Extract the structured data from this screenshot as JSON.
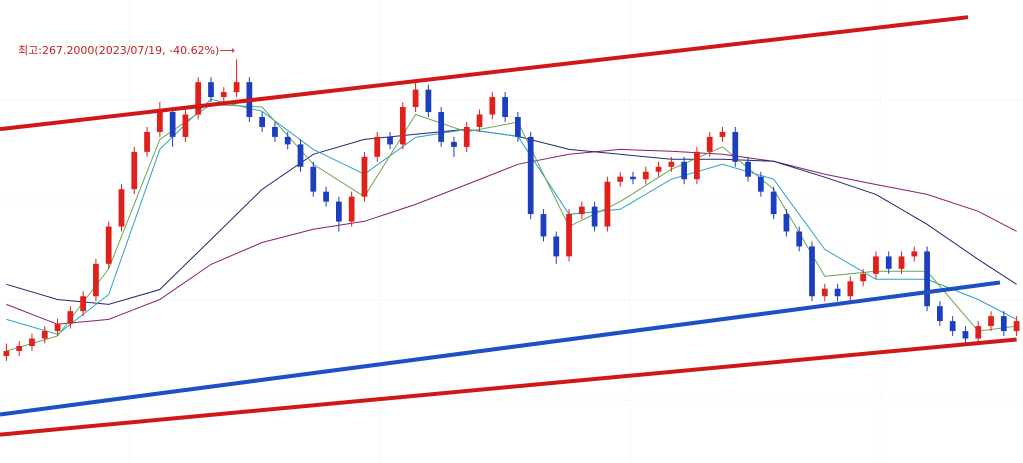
{
  "chart_data": {
    "type": "candlestick",
    "annotation": "최고:267.2000(2023/07/19, -40.62%)⟶",
    "xlim": [
      -0.5,
      79.5
    ],
    "ylim": [
      105,
      291
    ],
    "up_color": "#e0201b",
    "down_color": "#1d3fbf",
    "ohlc": [
      [
        148,
        153,
        146,
        150
      ],
      [
        150,
        154,
        148,
        152
      ],
      [
        152,
        157,
        150,
        155
      ],
      [
        155,
        160,
        153,
        158
      ],
      [
        158,
        163,
        156,
        161
      ],
      [
        161,
        168,
        159,
        166
      ],
      [
        166,
        174,
        164,
        172
      ],
      [
        172,
        187,
        170,
        185
      ],
      [
        185,
        202,
        183,
        200
      ],
      [
        200,
        217,
        198,
        215
      ],
      [
        215,
        232,
        213,
        230
      ],
      [
        230,
        240,
        228,
        238
      ],
      [
        238,
        250,
        236,
        246
      ],
      [
        246,
        248,
        232,
        236
      ],
      [
        236,
        247,
        234,
        245
      ],
      [
        245,
        260,
        243,
        258
      ],
      [
        258,
        260,
        250,
        252
      ],
      [
        252,
        256,
        250,
        254
      ],
      [
        254,
        267.2,
        252,
        258
      ],
      [
        258,
        260,
        242,
        244
      ],
      [
        244,
        246,
        238,
        240
      ],
      [
        240,
        242,
        234,
        236
      ],
      [
        236,
        238,
        231,
        233
      ],
      [
        233,
        235,
        222,
        224
      ],
      [
        224,
        226,
        212,
        214
      ],
      [
        214,
        216,
        208,
        210
      ],
      [
        210,
        212,
        198,
        202
      ],
      [
        202,
        214,
        200,
        212
      ],
      [
        212,
        230,
        210,
        228
      ],
      [
        228,
        238,
        226,
        236
      ],
      [
        236,
        238,
        231,
        233
      ],
      [
        233,
        250,
        231,
        248
      ],
      [
        248,
        258,
        246,
        255
      ],
      [
        255,
        257,
        244,
        246
      ],
      [
        246,
        248,
        232,
        234
      ],
      [
        234,
        236,
        228,
        232
      ],
      [
        232,
        242,
        230,
        240
      ],
      [
        240,
        247,
        238,
        245
      ],
      [
        245,
        254,
        243,
        252
      ],
      [
        252,
        254,
        242,
        244
      ],
      [
        244,
        246,
        234,
        236
      ],
      [
        236,
        238,
        203,
        205
      ],
      [
        205,
        207,
        194,
        196
      ],
      [
        196,
        198,
        185,
        188
      ],
      [
        188,
        207,
        186,
        205
      ],
      [
        205,
        210,
        203,
        208
      ],
      [
        208,
        210,
        198,
        200
      ],
      [
        200,
        220,
        198,
        218
      ],
      [
        218,
        222,
        216,
        220
      ],
      [
        220,
        222,
        217,
        219
      ],
      [
        219,
        224,
        217,
        222
      ],
      [
        222,
        226,
        220,
        224
      ],
      [
        224,
        228,
        222,
        226
      ],
      [
        226,
        228,
        217,
        219
      ],
      [
        219,
        232,
        217,
        230
      ],
      [
        230,
        238,
        228,
        236
      ],
      [
        236,
        240,
        234,
        238
      ],
      [
        238,
        240,
        224,
        226
      ],
      [
        226,
        228,
        218,
        220
      ],
      [
        220,
        222,
        212,
        214
      ],
      [
        214,
        216,
        203,
        205
      ],
      [
        205,
        207,
        196,
        198
      ],
      [
        198,
        200,
        190,
        192
      ],
      [
        192,
        194,
        170,
        172
      ],
      [
        172,
        177,
        170,
        175
      ],
      [
        175,
        177,
        170,
        172
      ],
      [
        172,
        180,
        170,
        178
      ],
      [
        178,
        183,
        176,
        181
      ],
      [
        181,
        190,
        179,
        188
      ],
      [
        188,
        190,
        181,
        183
      ],
      [
        183,
        190,
        181,
        188
      ],
      [
        188,
        192,
        186,
        190
      ],
      [
        190,
        192,
        166,
        168
      ],
      [
        168,
        170,
        160,
        162
      ],
      [
        162,
        164,
        156,
        158
      ],
      [
        158,
        160,
        153,
        155
      ],
      [
        155,
        162,
        153,
        160
      ],
      [
        160,
        166,
        158,
        164
      ],
      [
        164,
        166,
        156,
        158
      ],
      [
        158,
        164,
        156,
        162
      ]
    ],
    "ma_x": [
      0,
      4,
      8,
      12,
      16,
      20,
      24,
      28,
      32,
      36,
      40,
      44,
      48,
      52,
      56,
      60,
      64,
      68,
      72,
      76,
      79
    ],
    "series": [
      {
        "color": "#8a1f6e",
        "values": [
          168.7,
          160.7,
          162.7,
          170.7,
          184.8,
          193.6,
          198.9,
          202.1,
          208.9,
          216.9,
          225,
          229,
          231,
          230.2,
          229,
          226.2,
          221,
          216.9,
          212.9,
          206.1,
          198.1
        ]
      },
      {
        "color": "#1c2a78",
        "values": [
          176.8,
          170.7,
          168.7,
          174.7,
          194.8,
          214.9,
          229,
          235,
          237.1,
          239.1,
          236.2,
          231,
          229,
          227,
          227,
          226.2,
          219.8,
          212.9,
          200.9,
          186.8,
          176.8
        ]
      },
      {
        "color": "#2aa3c9",
        "values": [
          162.7,
          156.7,
          172.7,
          231,
          251.1,
          246.3,
          231,
          221,
          235.8,
          239.1,
          236.2,
          204.9,
          206.9,
          219,
          225,
          219,
          190.8,
          178.8,
          178.8,
          170.7,
          162.7
        ]
      },
      {
        "color": "#6aa84f",
        "values": [
          150,
          156,
          183,
          235,
          249,
          248,
          225,
          212,
          245,
          238,
          242,
          200,
          210,
          223,
          232,
          215,
          180,
          182,
          182,
          158,
          160
        ]
      }
    ],
    "trendlines": [
      {
        "color": "#d01818",
        "x": [
          -0.5,
          75.2
        ],
        "values": [
          239.1,
          284.1
        ]
      },
      {
        "color": "#1f4fc6",
        "x": [
          -0.5,
          77.7
        ],
        "values": [
          124.5,
          177.5
        ]
      },
      {
        "color": "#d01818",
        "x": [
          -0.5,
          79
        ],
        "values": [
          116.4,
          154.6
        ]
      }
    ]
  }
}
